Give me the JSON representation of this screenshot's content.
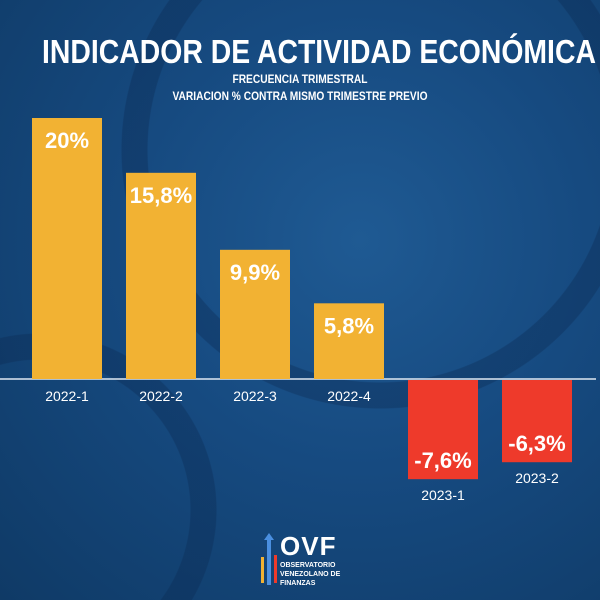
{
  "header": {
    "title": "INDICADOR DE ACTIVIDAD ECONÓMICA",
    "subtitle1": "FRECUENCIA TRIMESTRAL",
    "subtitle2": "VARIACION % CONTRA MISMO TRIMESTRE PREVIO"
  },
  "logo": {
    "name": "OVF",
    "line1": "OBSERVATORIO",
    "line2": "VENEZOLANO DE",
    "line3": "FINANZAS"
  },
  "colors": {
    "positive": "#f2b233",
    "negative": "#ee3a2b",
    "background": "#164a80"
  },
  "chart_data": {
    "type": "bar",
    "title": "INDICADOR DE ACTIVIDAD ECONÓMICA",
    "subtitle": "FRECUENCIA TRIMESTRAL - VARIACION % CONTRA MISMO TRIMESTRE PREVIO",
    "xlabel": "",
    "ylabel": "",
    "categories": [
      "2022-1",
      "2022-2",
      "2022-3",
      "2022-4",
      "2023-1",
      "2023-2"
    ],
    "values": [
      20,
      15.8,
      9.9,
      5.8,
      -7.6,
      -6.3
    ],
    "labels": [
      "20%",
      "15,8%",
      "9,9%",
      "5,8%",
      "-7,6%",
      "-6,3%"
    ],
    "ylim": [
      -8,
      20
    ],
    "grid": false
  }
}
